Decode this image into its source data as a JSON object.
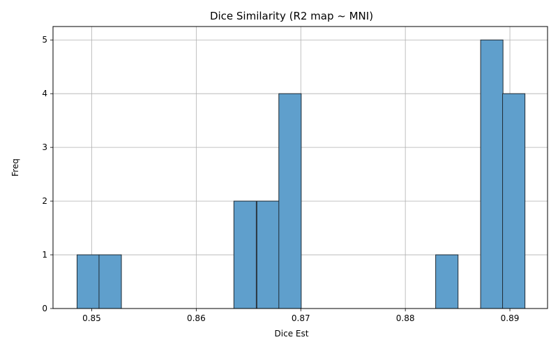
{
  "chart_data": {
    "type": "bar",
    "title": "Dice Similarity (R2 map ~ MNI)",
    "xlabel": "Dice Est",
    "ylabel": "Freq",
    "xlim": [
      0.8463,
      0.8936
    ],
    "ylim": [
      0,
      5.25
    ],
    "grid": true,
    "bar_color": "#5f9fcc",
    "edge_color": "#1f2a33",
    "bin_width": 0.00214,
    "bins": [
      {
        "start": 0.8486,
        "count": 1
      },
      {
        "start": 0.8507,
        "count": 1
      },
      {
        "start": 0.8636,
        "count": 2
      },
      {
        "start": 0.8658,
        "count": 2
      },
      {
        "start": 0.8679,
        "count": 4
      },
      {
        "start": 0.8829,
        "count": 1
      },
      {
        "start": 0.8872,
        "count": 5
      },
      {
        "start": 0.8893,
        "count": 4
      }
    ],
    "x_ticks": [
      {
        "value": 0.85,
        "label": "0.85"
      },
      {
        "value": 0.86,
        "label": "0.86"
      },
      {
        "value": 0.87,
        "label": "0.87"
      },
      {
        "value": 0.88,
        "label": "0.88"
      },
      {
        "value": 0.89,
        "label": "0.89"
      }
    ],
    "y_ticks": [
      {
        "value": 0,
        "label": "0"
      },
      {
        "value": 1,
        "label": "1"
      },
      {
        "value": 2,
        "label": "2"
      },
      {
        "value": 3,
        "label": "3"
      },
      {
        "value": 4,
        "label": "4"
      },
      {
        "value": 5,
        "label": "5"
      }
    ]
  }
}
